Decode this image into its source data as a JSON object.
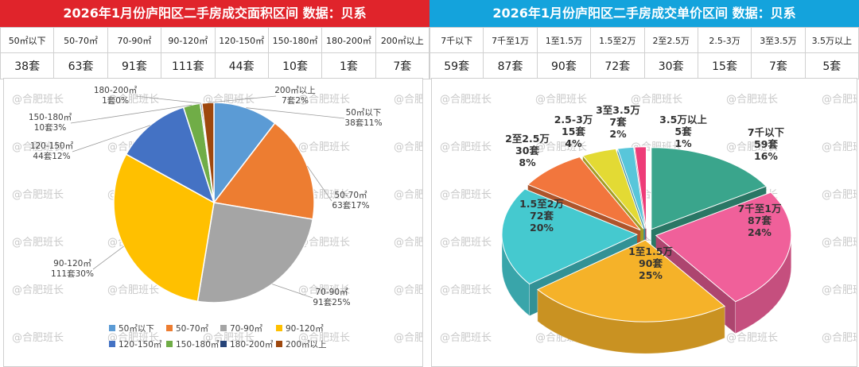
{
  "left_panel": {
    "title": "2026年1月份庐阳区二手房成交面积区间 数据：贝系",
    "accent": "#e0242b",
    "table": {
      "headers": [
        "50㎡以下",
        "50-70㎡",
        "70-90㎡",
        "90-120㎡",
        "120-150㎡",
        "150-180㎡",
        "180-200㎡",
        "200㎡以上"
      ],
      "values": [
        "38套",
        "63套",
        "91套",
        "111套",
        "44套",
        "10套",
        "1套",
        "7套"
      ]
    }
  },
  "right_panel": {
    "title": "2026年1月份庐阳区二手房成交单价区间 数据：贝系",
    "accent": "#14a3dc",
    "table": {
      "headers": [
        "7千以下",
        "7千至1万",
        "1至1.5万",
        "1.5至2万",
        "2至2.5万",
        "2.5-3万",
        "3至3.5万",
        "3.5万以上"
      ],
      "values": [
        "59套",
        "87套",
        "90套",
        "72套",
        "30套",
        "15套",
        "7套",
        "5套"
      ]
    }
  },
  "watermark": "@合肥班长",
  "chart_data": [
    {
      "type": "pie",
      "title": "2026年1月份庐阳区二手房成交面积区间",
      "unit": "套",
      "legend_position": "bottom",
      "categories": [
        "50㎡以下",
        "50-70㎡",
        "70-90㎡",
        "90-120㎡",
        "120-150㎡",
        "150-180㎡",
        "180-200㎡",
        "200㎡以上"
      ],
      "values": [
        38,
        63,
        91,
        111,
        44,
        10,
        1,
        7
      ],
      "percents": [
        "11%",
        "17%",
        "25%",
        "30%",
        "12%",
        "3%",
        "0%",
        "2%"
      ],
      "colors": [
        "#5b9bd5",
        "#ed7d31",
        "#a5a5a5",
        "#ffc000",
        "#4472c4",
        "#70ad47",
        "#264478",
        "#9e480e"
      ]
    },
    {
      "type": "pie",
      "style": "3d-exploded",
      "title": "2026年1月份庐阳区二手房成交单价区间",
      "unit": "套",
      "categories": [
        "7千以下",
        "7千至1万",
        "1至1.5万",
        "1.5至2万",
        "2至2.5万",
        "2.5-3万",
        "3至3.5万",
        "3.5万以上"
      ],
      "values": [
        59,
        87,
        90,
        72,
        30,
        15,
        7,
        5
      ],
      "percents": [
        "16%",
        "24%",
        "25%",
        "20%",
        "8%",
        "4%",
        "2%",
        "1%"
      ],
      "colors": [
        "#3aa58c",
        "#f0609a",
        "#f5b229",
        "#45c9cf",
        "#f2763d",
        "#e3da34",
        "#58c6da",
        "#ee3c78"
      ]
    }
  ]
}
